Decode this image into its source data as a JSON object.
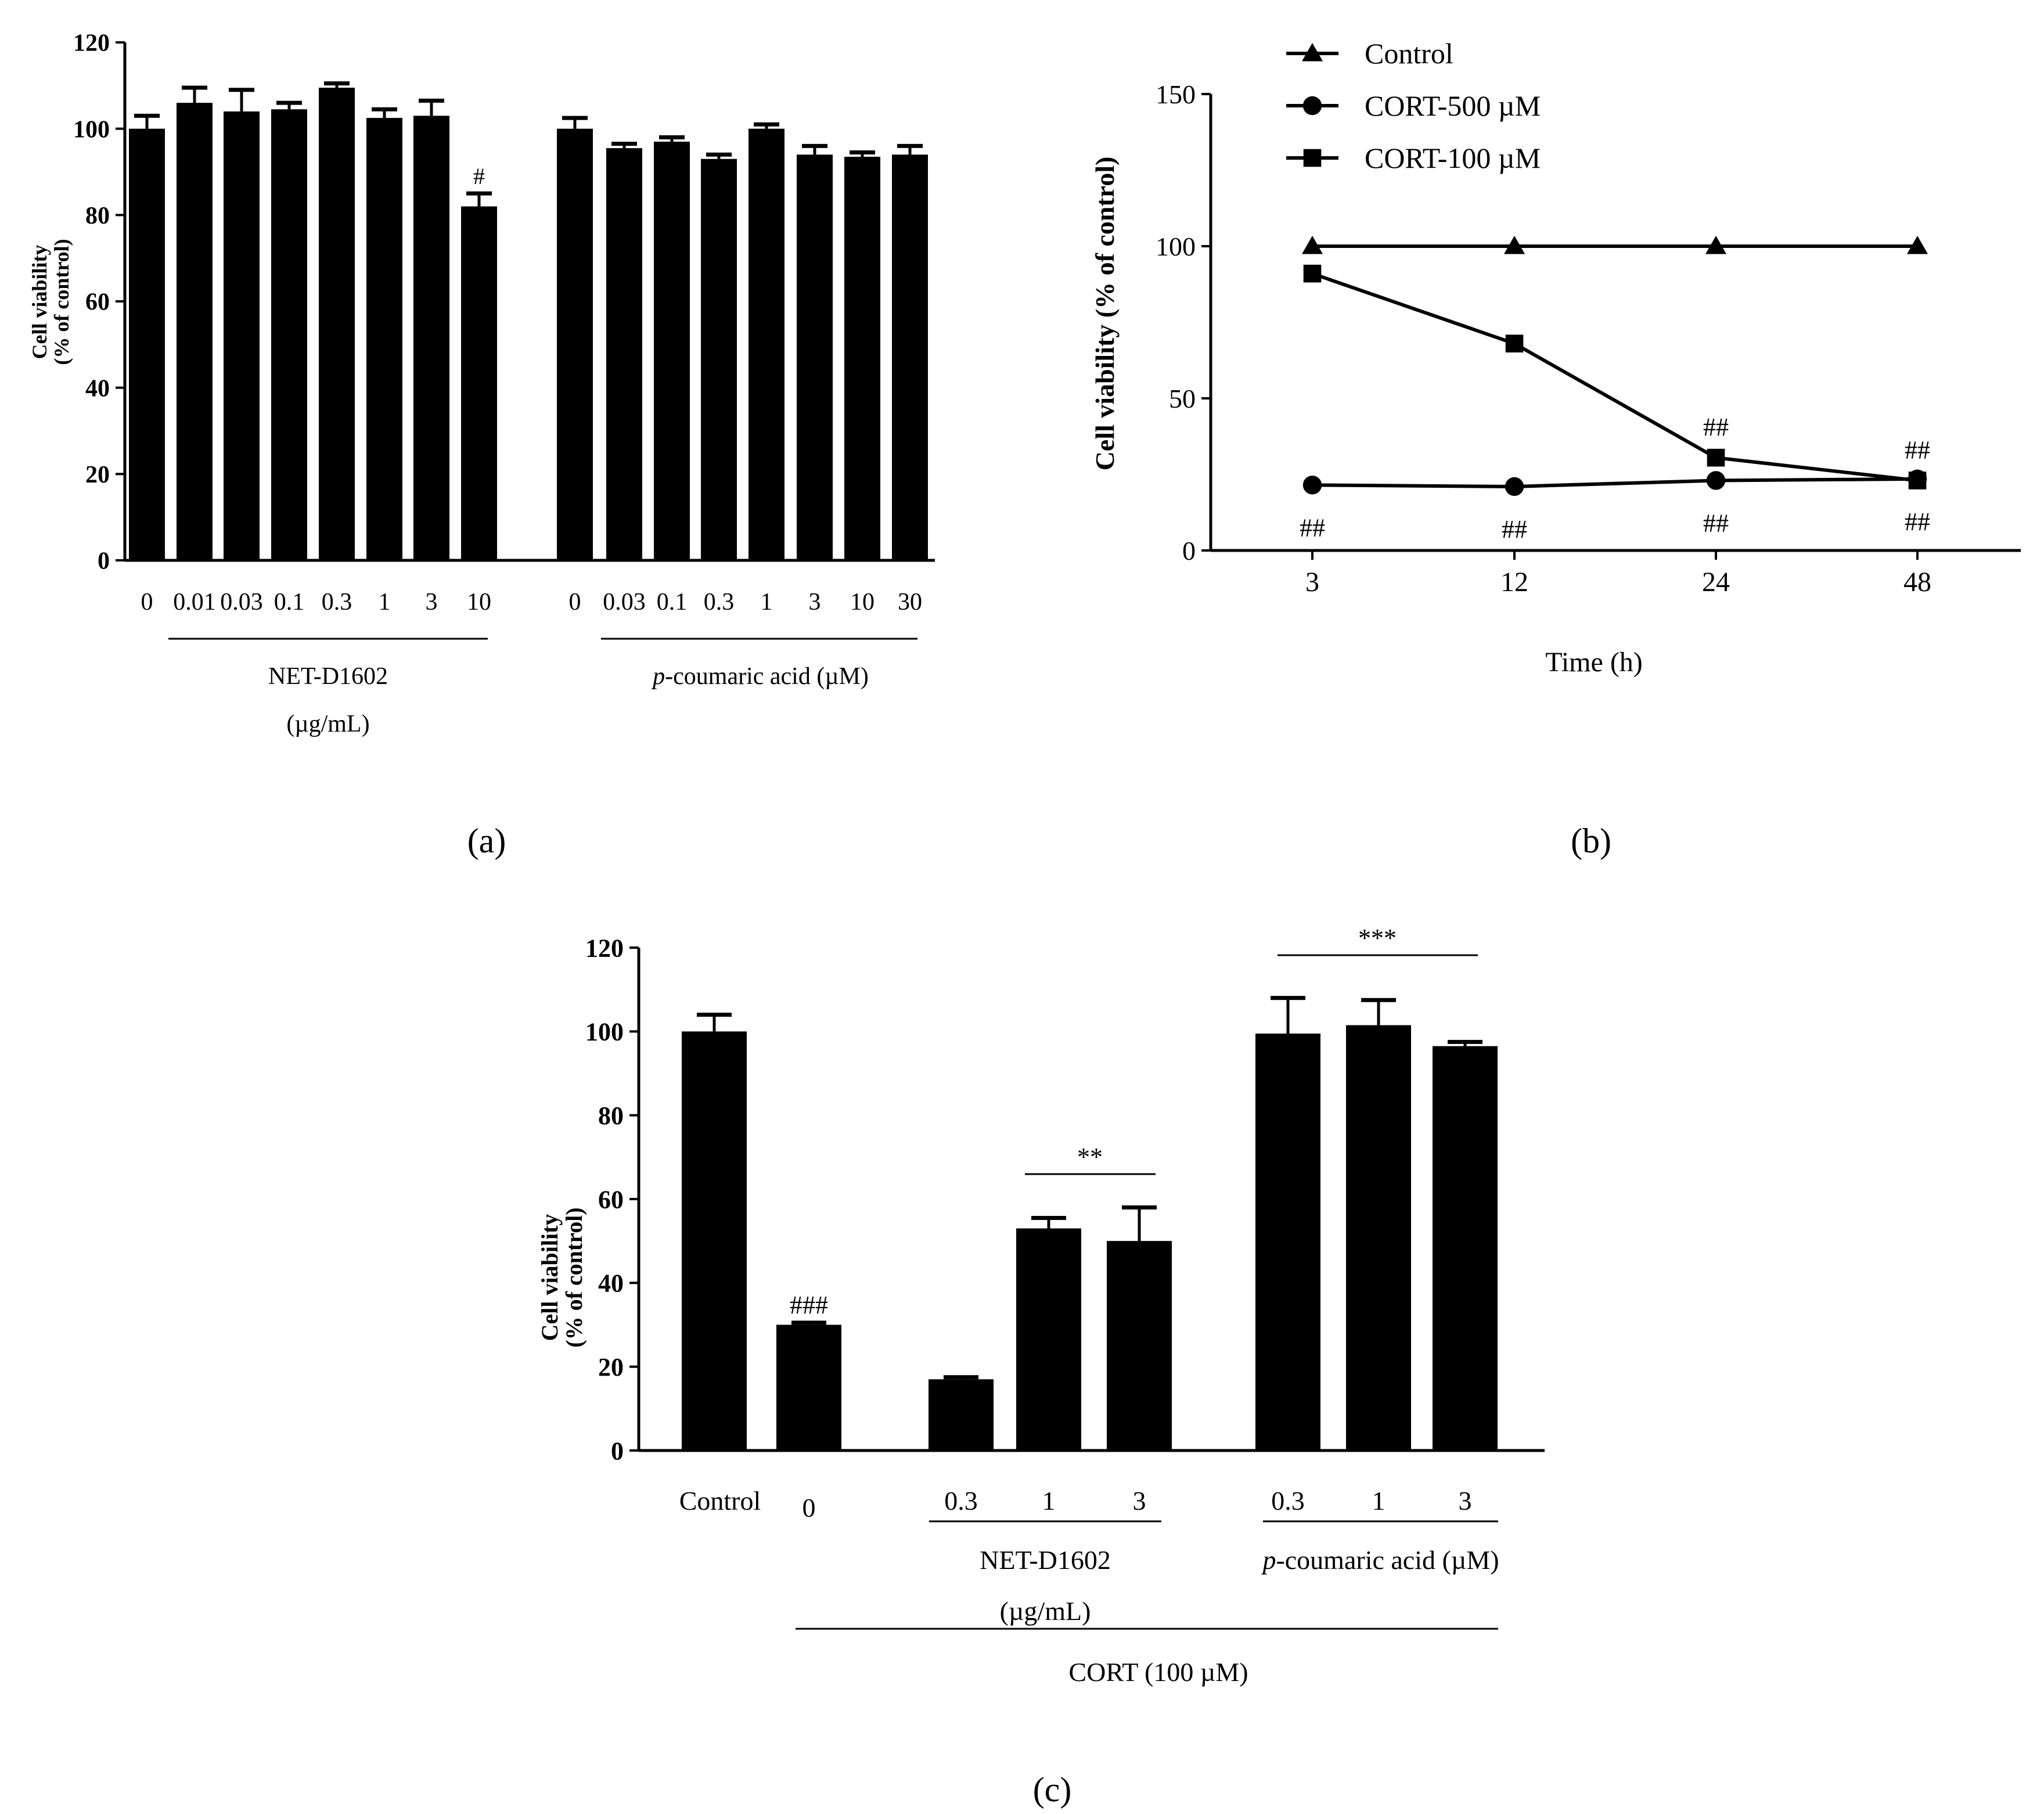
{
  "colors": {
    "ink": "#000000",
    "background": "#ffffff"
  },
  "chart_data": [
    {
      "panel": "a",
      "type": "bar",
      "panel_label": "(a)",
      "ylabel_line1": "Cell viability",
      "ylabel_line2": "(% of control)",
      "ylim": [
        0,
        120
      ],
      "yticks": [
        "0",
        "20",
        "40",
        "60",
        "80",
        "100",
        "120"
      ],
      "groups": [
        {
          "label": "NET-D1602",
          "label_line2": "(µg/mL)",
          "categories": [
            "0",
            "0.01",
            "0.03",
            "0.1",
            "0.3",
            "1",
            "3",
            "10"
          ],
          "values": [
            100,
            106,
            104,
            104.5,
            109.5,
            102.5,
            103,
            82
          ],
          "errors": [
            3,
            3.5,
            5,
            1.5,
            1,
            2,
            3.5,
            3
          ],
          "annotations": [
            "",
            "",
            "",
            "",
            "",
            "",
            "",
            "#"
          ]
        },
        {
          "label_prefix": "p",
          "label": "-coumaric acid (µM)",
          "categories": [
            "0",
            "0.03",
            "0.1",
            "0.3",
            "1",
            "3",
            "10",
            "30"
          ],
          "values": [
            100,
            95.5,
            97,
            93,
            100,
            94,
            93.5,
            94
          ],
          "errors": [
            2.5,
            1,
            1,
            1,
            1,
            2,
            1,
            2
          ],
          "annotations": [
            "",
            "",
            "",
            "",
            "",
            "",
            "",
            ""
          ]
        }
      ]
    },
    {
      "panel": "b",
      "type": "line",
      "panel_label": "(b)",
      "ylabel": "Cell viability (% of control)",
      "xlabel": "Time (h)",
      "ylim": [
        0,
        150
      ],
      "yticks": [
        "0",
        "50",
        "100",
        "150"
      ],
      "categories": [
        "3",
        "12",
        "24",
        "48"
      ],
      "series": [
        {
          "name": "Control",
          "marker": "triangle",
          "values": [
            100,
            100,
            100,
            100
          ],
          "annotations": [
            "",
            "",
            "",
            ""
          ]
        },
        {
          "name": "CORT-500 µM",
          "marker": "circle",
          "values": [
            21.5,
            21,
            23,
            23.5
          ],
          "annotations": [
            "##",
            "##",
            "##",
            "##"
          ]
        },
        {
          "name": "CORT-100 µM",
          "marker": "square",
          "values": [
            91,
            68,
            30.5,
            23
          ],
          "annotations": [
            "",
            "",
            "##",
            "##"
          ]
        }
      ]
    },
    {
      "panel": "c",
      "type": "bar",
      "panel_label": "(c)",
      "ylabel_line1": "Cell viability",
      "ylabel_line2": "(% of control)",
      "ylim": [
        0,
        120
      ],
      "yticks": [
        "0",
        "20",
        "40",
        "60",
        "80",
        "100",
        "120"
      ],
      "categories": [
        "Control",
        "0",
        "0.3",
        "1",
        "3",
        "0.3",
        "1",
        "3"
      ],
      "values": [
        100,
        30,
        17,
        53,
        50,
        99.5,
        101.5,
        96.5
      ],
      "errors": [
        4,
        0.5,
        0.5,
        2.5,
        8,
        8.5,
        6,
        1
      ],
      "bar_annotations": [
        "",
        "###",
        "",
        "",
        "",
        "",
        "",
        ""
      ],
      "group1_label": "NET-D1602",
      "group1_label_line2": "(µg/mL)",
      "group2_label_prefix": "p",
      "group2_label": "-coumaric acid (µM)",
      "bracket1_label": "**",
      "bracket2_label": "***",
      "treatment_label": "CORT (100 µM)"
    }
  ]
}
